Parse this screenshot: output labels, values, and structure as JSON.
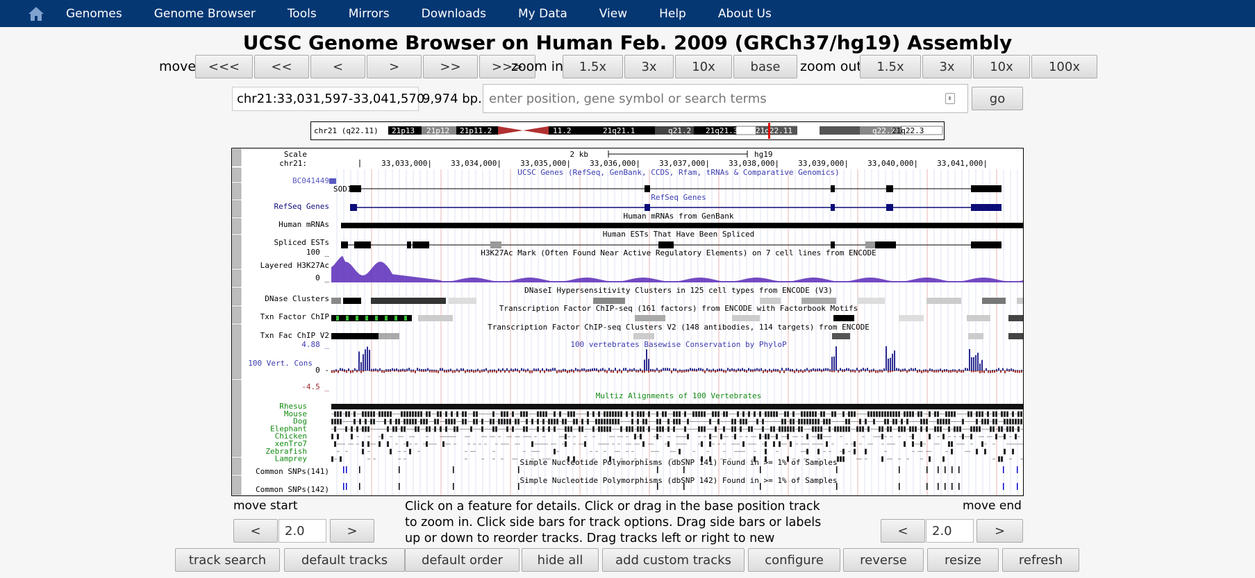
{
  "nav": {
    "items": [
      "Genomes",
      "Genome Browser",
      "Tools",
      "Mirrors",
      "Downloads",
      "My Data",
      "View",
      "Help",
      "About Us"
    ]
  },
  "title": "UCSC Genome Browser on Human Feb. 2009 (GRCh37/hg19) Assembly",
  "controls": {
    "move_label": "move",
    "move_buttons": [
      "<<<",
      "<<",
      "<",
      ">",
      ">>",
      ">>>"
    ],
    "zoom_in_label": "zoom in",
    "zoom_in_buttons": [
      "1.5x",
      "3x",
      "10x",
      "base"
    ],
    "zoom_out_label": "zoom out",
    "zoom_out_buttons": [
      "1.5x",
      "3x",
      "10x",
      "100x"
    ]
  },
  "position": {
    "value": "chr21:33,031,597-33,041,570",
    "size": "9,974 bp.",
    "search_placeholder": "enter position, gene symbol or search terms",
    "go_label": "go"
  },
  "ideogram": {
    "label": "chr21 (q22.11)",
    "bands": [
      "21p13",
      "21p12",
      "21p11.2",
      "11.2",
      "21q21.1",
      "q21.2",
      "21q21.3",
      "21q22.11",
      "q22.2",
      "21q22.3"
    ]
  },
  "browser": {
    "scale_label": "Scale",
    "chrom_label": "chr21:",
    "scale_bar": "2 kb",
    "assembly": "hg19",
    "ruler": [
      "33,033,000|",
      "33,034,000|",
      "33,035,000|",
      "33,036,000|",
      "33,037,000|",
      "33,038,000|",
      "33,039,000|",
      "33,040,000|",
      "33,041,000|"
    ],
    "tracks": {
      "ucsc_genes_title": "UCSC Genes (RefSeq, GenBank, CCDS, Rfam, tRNAs & Comparative Genomics)",
      "bc_label": "BC041449",
      "sod1_label": "SOD1",
      "refseq_title": "RefSeq Genes",
      "refseq_label": "RefSeq Genes",
      "mrna_title": "Human mRNAs from GenBank",
      "mrna_label": "Human mRNAs",
      "est_title": "Human ESTs That Have Been Spliced",
      "est_label": "Spliced ESTs",
      "h3k_top": "100 _",
      "h3k_label": "Layered H3K27Ac",
      "h3k_bottom": "0 _",
      "h3k_title": "H3K27Ac Mark (Often Found Near Active Regulatory Elements) on 7 cell lines from ENCODE",
      "dnase_title": "DNaseI Hypersensitivity Clusters in 125 cell types from ENCODE (V3)",
      "dnase_label": "DNase Clusters",
      "txn_title": "Transcription Factor ChIP-seq (161 factors) from ENCODE with Factorbook Motifs",
      "txn_label": "Txn Factor ChIP",
      "txn2_title": "Transcription Factor ChIP-seq Clusters V2 (148 antibodies, 114 targets) from ENCODE",
      "txn2_label": "Txn Fac ChIP V2",
      "cons_top": "4.88 _",
      "cons_title": "100 vertebrates Basewise Conservation by PhyloP",
      "cons_label": "100 Vert. Cons",
      "cons_zero": "0 -",
      "cons_bottom": "-4.5 _",
      "multiz_title": "Multiz Alignments of 100 Vertebrates",
      "species": [
        "Rhesus",
        "Mouse",
        "Dog",
        "Elephant",
        "Chicken",
        "xenTro7",
        "Zebrafish",
        "Lamprey"
      ],
      "snp141_title": "Simple Nucleotide Polymorphisms (dbSNP 141) Found in >= 1% of Samples",
      "snp141_label": "Common SNPs(141)",
      "snp142_title": "Simple Nucleotide Polymorphisms (dbSNP 142) Found in >= 1% of Samples",
      "snp142_label": "Common SNPs(142)"
    }
  },
  "bottom": {
    "move_start_label": "move start",
    "move_start_value": "2.0",
    "move_end_label": "move end",
    "move_end_value": "2.0",
    "left": "<",
    "right": ">",
    "help_text": "Click on a feature for details. Click or drag in the base position track to zoom in. Click side bars for track options. Drag side bars or labels up or down to reorder tracks. Drag tracks left or right to new position.",
    "buttons": [
      "track search",
      "default tracks",
      "default order",
      "hide all",
      "add custom tracks",
      "configure",
      "reverse",
      "resize",
      "refresh"
    ]
  },
  "colors": {
    "nav_bg": "#053773",
    "track_blue": "#0c0c78",
    "label_blue": "#3b3bb0",
    "species_green": "#138a13"
  }
}
